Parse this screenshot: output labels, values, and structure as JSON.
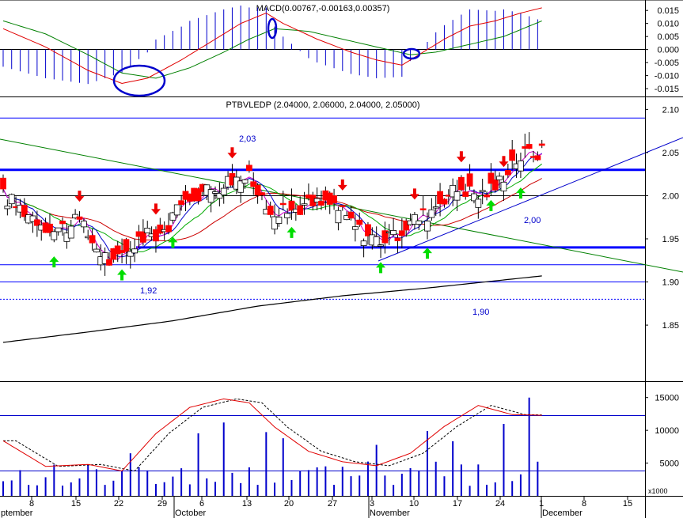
{
  "chart_data": [
    {
      "panel": "macd",
      "type": "line",
      "title": "MACD(0.00767,-0.00163,0.00357)",
      "ylim": [
        -0.018,
        0.019
      ],
      "y_ticks": [
        "0.015",
        "0.010",
        "0.005",
        "0.000",
        "-0.005",
        "-0.010",
        "-0.015"
      ],
      "y_tick_values": [
        0.015,
        0.01,
        0.005,
        0.0,
        -0.005,
        -0.01,
        -0.015
      ],
      "colors": {
        "macd": "#e00000",
        "signal": "#008000",
        "histogram": "#0000cc",
        "annotation": "#0000cc"
      }
    },
    {
      "panel": "price",
      "type": "candlestick",
      "title": "PTBVLEDP (2.04000, 2.06000, 2.04000, 2.05000)",
      "ylim": [
        1.785,
        2.115
      ],
      "y_ticks": [
        "2.10",
        "2.05",
        "2.00",
        "1.95",
        "1.90",
        "1.85"
      ],
      "y_tick_values": [
        2.1,
        2.05,
        2.0,
        1.95,
        1.9,
        1.85
      ],
      "annotations": [
        "2,03",
        "2,00",
        "1,92",
        "1,90"
      ],
      "levels": [
        2.09,
        2.03,
        2.0,
        1.94,
        1.92,
        1.9,
        1.88
      ],
      "colors": {
        "up": "#ffffff",
        "down": "#ff0000",
        "support": "#0000ff",
        "trend": "#008000",
        "ma_long": "#000000",
        "ma_fast": "#cc00cc",
        "ma_mid": "#0000cc",
        "ma_slow": "#00aa00",
        "ma_red": "#cc0000",
        "arrow_up": "#00dd00",
        "arrow_down": "#ee0000"
      }
    },
    {
      "panel": "volume",
      "type": "bar",
      "ylim": [
        0,
        17500
      ],
      "y_ticks": [
        "15000",
        "10000",
        "5000"
      ],
      "y_tick_values": [
        15000,
        10000,
        5000
      ],
      "unit_label": "x1000",
      "colors": {
        "bars": "#0000cc",
        "ma": "#e00000",
        "ma_dashed": "#000000"
      }
    }
  ],
  "x_axis": {
    "day_labels": [
      "8",
      "15",
      "22",
      "29",
      "6",
      "13",
      "20",
      "27",
      "3",
      "10",
      "17",
      "24",
      "1",
      "8",
      "15"
    ],
    "month_labels": [
      "ptember",
      "October",
      "November",
      "December"
    ]
  }
}
